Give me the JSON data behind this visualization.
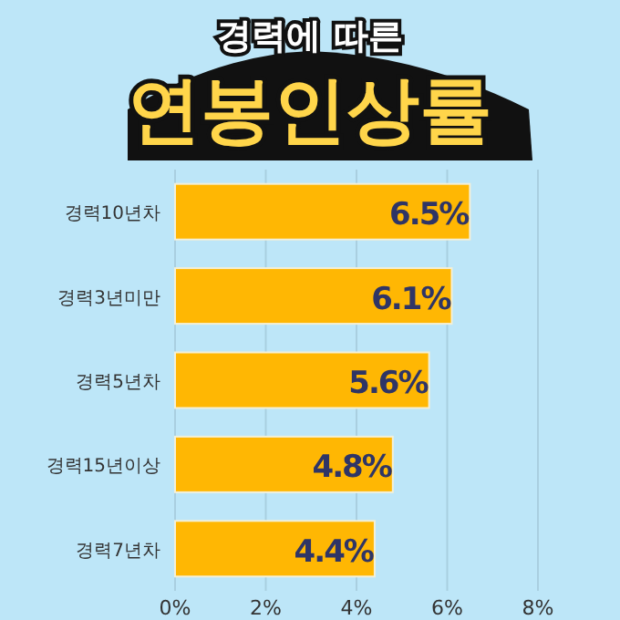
{
  "chart_data": {
    "type": "bar",
    "orientation": "horizontal",
    "title": "경력에 따른",
    "subtitle": "연봉인상률",
    "categories": [
      "경력10년차",
      "경력3년미만",
      "경력5년차",
      "경력15년이상",
      "경력7년차"
    ],
    "values": [
      6.5,
      6.1,
      5.6,
      4.8,
      4.4
    ],
    "value_labels": [
      "6.5%",
      "6.1%",
      "5.6%",
      "4.8%",
      "4.4%"
    ],
    "color": "#ffb703",
    "xlim": [
      0,
      8
    ],
    "xticks": [
      {
        "value": 0,
        "label": "0%"
      },
      {
        "value": 2,
        "label": "2%"
      },
      {
        "value": 4,
        "label": "4%"
      },
      {
        "value": 6,
        "label": "6%"
      },
      {
        "value": 8,
        "label": "8%"
      }
    ],
    "grid": "x"
  }
}
